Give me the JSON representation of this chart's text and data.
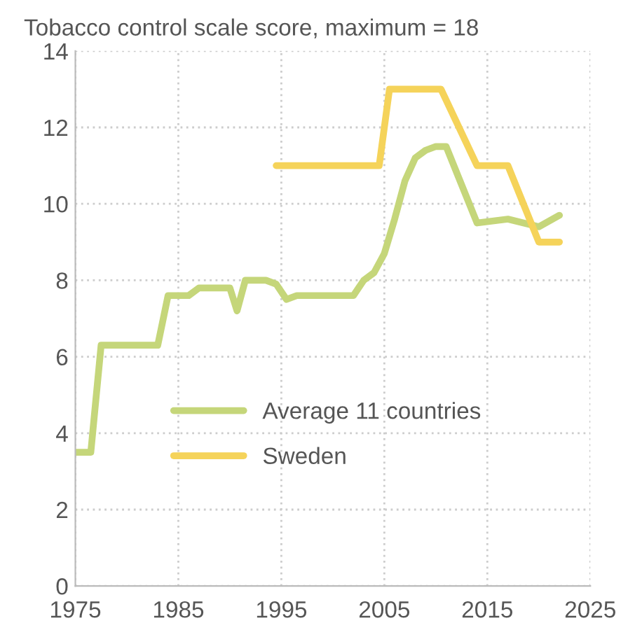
{
  "chart_data": {
    "type": "line",
    "title": "Tobacco control scale score, maximum = 18",
    "xlim": [
      1975,
      2025
    ],
    "xticks": [
      1975,
      1985,
      1995,
      2005,
      2015,
      2025
    ],
    "ylim": [
      0,
      14
    ],
    "yticks": [
      0,
      2,
      4,
      6,
      8,
      10,
      12,
      14
    ],
    "grid": true,
    "legend": "bottom left",
    "line_style": "solid",
    "marker": "none",
    "series": [
      {
        "name": "Average 11 countries",
        "color": "#c5d67a",
        "x": [
          1975,
          1976.5,
          1977.5,
          1983,
          1984,
          1986,
          1987,
          1990,
          1990.7,
          1991.5,
          1993.5,
          1994.5,
          1995.5,
          1996.5,
          2002,
          2003,
          2004,
          2005,
          2006,
          2007,
          2008,
          2009,
          2010,
          2011,
          2014,
          2017,
          2020,
          2022
        ],
        "values": [
          3.5,
          3.5,
          6.3,
          6.3,
          7.6,
          7.6,
          7.8,
          7.8,
          7.2,
          8.0,
          8.0,
          7.9,
          7.5,
          7.6,
          7.6,
          8.0,
          8.2,
          8.7,
          9.6,
          10.6,
          11.2,
          11.4,
          11.5,
          11.5,
          9.5,
          9.6,
          9.4,
          9.7
        ]
      },
      {
        "name": "Sweden",
        "color": "#f5d35a",
        "x": [
          1994.5,
          2004.5,
          2005.5,
          2010.5,
          2014,
          2017,
          2020,
          2022
        ],
        "values": [
          11,
          11,
          13,
          13,
          11,
          11,
          9,
          9
        ]
      }
    ]
  }
}
